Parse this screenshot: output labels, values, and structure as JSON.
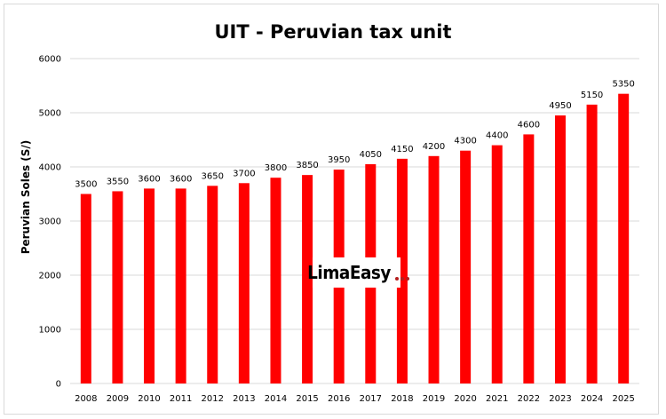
{
  "chart_data": {
    "type": "bar",
    "title": "UIT - Peruvian tax unit",
    "ylabel": "Peruvian Soles (S/)",
    "xlabel": "",
    "categories": [
      "2008",
      "2009",
      "2010",
      "2011",
      "2012",
      "2013",
      "2014",
      "2015",
      "2016",
      "2017",
      "2018",
      "2019",
      "2020",
      "2021",
      "2022",
      "2023",
      "2024",
      "2025"
    ],
    "values": [
      3500,
      3550,
      3600,
      3600,
      3650,
      3700,
      3800,
      3850,
      3950,
      4050,
      4150,
      4200,
      4300,
      4400,
      4600,
      4950,
      5150,
      5350
    ],
    "ylim": [
      0,
      6000
    ],
    "yticks": [
      0,
      1000,
      2000,
      3000,
      4000,
      5000,
      6000
    ],
    "grid": true,
    "bar_color": "#ff0000",
    "data_labels": true
  },
  "watermark": {
    "text": "LimaEasy",
    "dot_color": "#b41e1e"
  }
}
